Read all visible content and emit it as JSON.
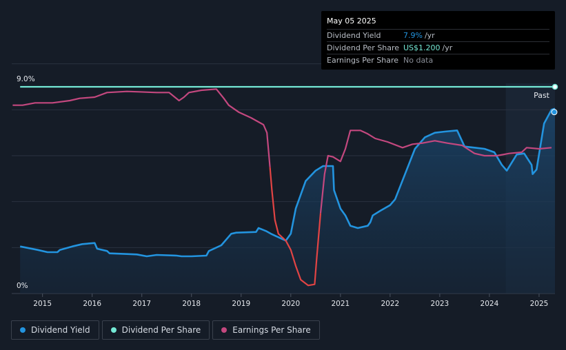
{
  "tooltip": {
    "date": "May 05 2025",
    "rows": [
      {
        "label": "Dividend Yield",
        "value": "7.9%",
        "suffix": "/yr",
        "color": "#2394df"
      },
      {
        "label": "Dividend Per Share",
        "value": "US$1.200",
        "suffix": "/yr",
        "color": "#75e9d6"
      },
      {
        "label": "Earnings Per Share",
        "value": "No data",
        "suffix": "",
        "color": "#8a8f98"
      }
    ]
  },
  "legend": [
    {
      "label": "Dividend Yield",
      "color": "#2394df"
    },
    {
      "label": "Dividend Per Share",
      "color": "#75e9d6"
    },
    {
      "label": "Earnings Per Share",
      "color": "#c4487f"
    }
  ],
  "chart_data": {
    "type": "line",
    "ylim": [
      0,
      9.0
    ],
    "ytick_labels": [
      "0%",
      "9.0%"
    ],
    "xlim": [
      2014.38,
      2025.32
    ],
    "xticks": [
      "2015",
      "2016",
      "2017",
      "2018",
      "2019",
      "2020",
      "2021",
      "2022",
      "2023",
      "2024",
      "2025"
    ],
    "past_label": "Past",
    "past_start": 2024.33,
    "grid": true,
    "series": [
      {
        "name": "Dividend Yield",
        "color": "#2394df",
        "area": true,
        "points": [
          [
            2014.55,
            2.05
          ],
          [
            2014.9,
            1.9
          ],
          [
            2015.1,
            1.8
          ],
          [
            2015.3,
            1.8
          ],
          [
            2015.35,
            1.9
          ],
          [
            2015.6,
            2.05
          ],
          [
            2015.8,
            2.15
          ],
          [
            2016.05,
            2.2
          ],
          [
            2016.1,
            1.95
          ],
          [
            2016.3,
            1.85
          ],
          [
            2016.35,
            1.75
          ],
          [
            2016.7,
            1.72
          ],
          [
            2016.9,
            1.7
          ],
          [
            2017.1,
            1.62
          ],
          [
            2017.3,
            1.68
          ],
          [
            2017.7,
            1.65
          ],
          [
            2017.8,
            1.62
          ],
          [
            2018.0,
            1.62
          ],
          [
            2018.3,
            1.65
          ],
          [
            2018.35,
            1.85
          ],
          [
            2018.6,
            2.1
          ],
          [
            2018.8,
            2.6
          ],
          [
            2018.9,
            2.65
          ],
          [
            2019.3,
            2.68
          ],
          [
            2019.35,
            2.85
          ],
          [
            2019.5,
            2.72
          ],
          [
            2019.6,
            2.6
          ],
          [
            2019.9,
            2.3
          ],
          [
            2020.0,
            2.6
          ],
          [
            2020.1,
            3.7
          ],
          [
            2020.3,
            4.9
          ],
          [
            2020.5,
            5.35
          ],
          [
            2020.65,
            5.55
          ],
          [
            2020.85,
            5.55
          ],
          [
            2020.87,
            4.5
          ],
          [
            2021.0,
            3.7
          ],
          [
            2021.1,
            3.4
          ],
          [
            2021.2,
            2.95
          ],
          [
            2021.35,
            2.85
          ],
          [
            2021.55,
            2.95
          ],
          [
            2021.6,
            3.1
          ],
          [
            2021.65,
            3.4
          ],
          [
            2021.8,
            3.6
          ],
          [
            2022.0,
            3.85
          ],
          [
            2022.1,
            4.1
          ],
          [
            2022.3,
            5.2
          ],
          [
            2022.5,
            6.3
          ],
          [
            2022.7,
            6.8
          ],
          [
            2022.9,
            7.0
          ],
          [
            2023.1,
            7.05
          ],
          [
            2023.35,
            7.1
          ],
          [
            2023.5,
            6.4
          ],
          [
            2023.7,
            6.35
          ],
          [
            2023.9,
            6.3
          ],
          [
            2024.1,
            6.15
          ],
          [
            2024.25,
            5.6
          ],
          [
            2024.35,
            5.35
          ],
          [
            2024.55,
            6.05
          ],
          [
            2024.7,
            6.1
          ],
          [
            2024.85,
            5.6
          ],
          [
            2024.87,
            5.2
          ],
          [
            2024.95,
            5.4
          ],
          [
            2025.1,
            7.4
          ],
          [
            2025.25,
            8.0
          ],
          [
            2025.32,
            8.05
          ]
        ]
      },
      {
        "name": "Dividend Per Share",
        "color": "#75e9d6",
        "area": false,
        "points": [
          [
            2014.55,
            9.0
          ],
          [
            2025.32,
            9.0
          ]
        ]
      },
      {
        "name": "Earnings Per Share",
        "color": "#c4487f",
        "negative_color": "#e24444",
        "area": false,
        "points": [
          [
            2014.4,
            8.2
          ],
          [
            2014.6,
            8.2
          ],
          [
            2014.85,
            8.3
          ],
          [
            2015.2,
            8.3
          ],
          [
            2015.55,
            8.4
          ],
          [
            2015.75,
            8.5
          ],
          [
            2016.05,
            8.55
          ],
          [
            2016.3,
            8.75
          ],
          [
            2016.7,
            8.8
          ],
          [
            2016.95,
            8.78
          ],
          [
            2017.3,
            8.75
          ],
          [
            2017.55,
            8.75
          ],
          [
            2017.75,
            8.4
          ],
          [
            2017.85,
            8.55
          ],
          [
            2017.95,
            8.75
          ],
          [
            2018.2,
            8.85
          ],
          [
            2018.5,
            8.9
          ],
          [
            2018.65,
            8.5
          ],
          [
            2018.75,
            8.2
          ],
          [
            2018.95,
            7.9
          ],
          [
            2019.2,
            7.65
          ],
          [
            2019.45,
            7.35
          ],
          [
            2019.52,
            7.0
          ],
          [
            2019.58,
            5.5
          ],
          [
            2019.62,
            4.5
          ],
          [
            2019.68,
            3.2
          ],
          [
            2019.75,
            2.6
          ],
          [
            2019.9,
            2.3
          ],
          [
            2020.0,
            1.9
          ],
          [
            2020.1,
            1.2
          ],
          [
            2020.2,
            0.6
          ],
          [
            2020.35,
            0.35
          ],
          [
            2020.48,
            0.4
          ],
          [
            2020.52,
            1.5
          ],
          [
            2020.6,
            3.5
          ],
          [
            2020.68,
            5.2
          ],
          [
            2020.75,
            6.0
          ],
          [
            2020.85,
            5.95
          ],
          [
            2021.0,
            5.75
          ],
          [
            2021.1,
            6.3
          ],
          [
            2021.2,
            7.1
          ],
          [
            2021.4,
            7.1
          ],
          [
            2021.55,
            6.95
          ],
          [
            2021.7,
            6.75
          ],
          [
            2021.95,
            6.6
          ],
          [
            2022.25,
            6.35
          ],
          [
            2022.45,
            6.5
          ],
          [
            2022.65,
            6.55
          ],
          [
            2022.9,
            6.65
          ],
          [
            2023.15,
            6.55
          ],
          [
            2023.45,
            6.45
          ],
          [
            2023.7,
            6.1
          ],
          [
            2023.9,
            6.0
          ],
          [
            2024.15,
            6.0
          ],
          [
            2024.4,
            6.1
          ],
          [
            2024.65,
            6.15
          ],
          [
            2024.75,
            6.35
          ],
          [
            2025.0,
            6.3
          ],
          [
            2025.25,
            6.35
          ]
        ]
      }
    ],
    "end_markers": {
      "yield_label": "◎"
    }
  }
}
